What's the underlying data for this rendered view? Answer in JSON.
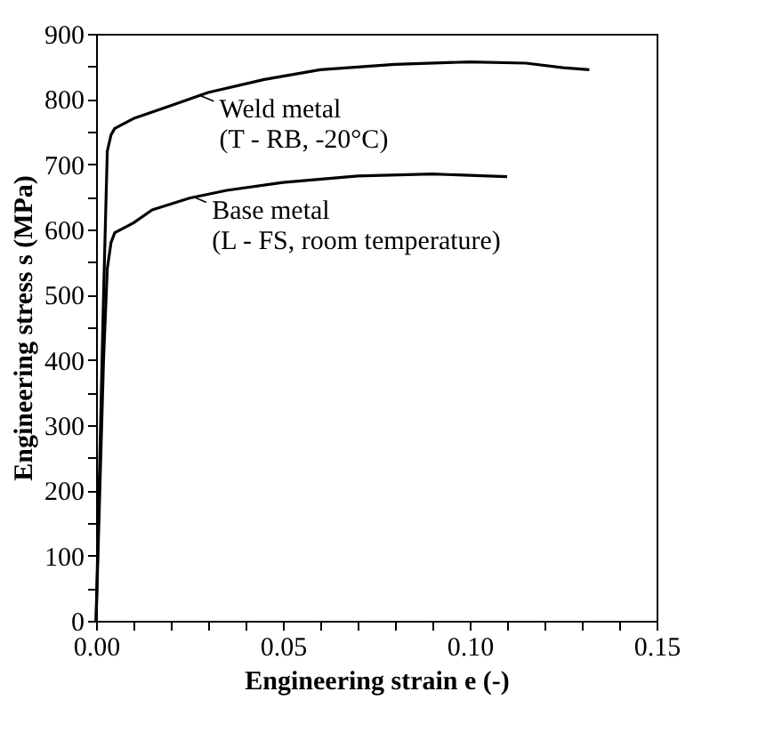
{
  "chart_data": {
    "type": "line",
    "xlabel": "Engineering strain e (-)",
    "ylabel": "Engineering stress s (MPa)",
    "xlim": [
      0,
      0.15
    ],
    "ylim": [
      0,
      900
    ],
    "xticks": [
      {
        "value": 0,
        "label": "0.00"
      },
      {
        "value": 0.01,
        "label": null
      },
      {
        "value": 0.02,
        "label": null
      },
      {
        "value": 0.03,
        "label": null
      },
      {
        "value": 0.04,
        "label": null
      },
      {
        "value": 0.05,
        "label": "0.05"
      },
      {
        "value": 0.06,
        "label": null
      },
      {
        "value": 0.07,
        "label": null
      },
      {
        "value": 0.08,
        "label": null
      },
      {
        "value": 0.09,
        "label": null
      },
      {
        "value": 0.1,
        "label": "0.10"
      },
      {
        "value": 0.11,
        "label": null
      },
      {
        "value": 0.12,
        "label": null
      },
      {
        "value": 0.13,
        "label": null
      },
      {
        "value": 0.14,
        "label": null
      },
      {
        "value": 0.15,
        "label": "0.15"
      }
    ],
    "yticks": [
      0,
      {
        "value": 50,
        "label": null
      },
      100,
      {
        "value": 150,
        "label": null
      },
      200,
      {
        "value": 250,
        "label": null
      },
      300,
      {
        "value": 350,
        "label": null
      },
      400,
      {
        "value": 450,
        "label": null
      },
      500,
      {
        "value": 550,
        "label": null
      },
      600,
      {
        "value": 650,
        "label": null
      },
      700,
      {
        "value": 750,
        "label": null
      },
      800,
      {
        "value": 850,
        "label": null
      },
      900
    ],
    "grid": false,
    "marker": "none",
    "line_style": "solid",
    "series": [
      {
        "color": "#000000",
        "x": [
          0,
          0.002,
          0.003,
          0.004,
          0.005,
          0.01,
          0.02,
          0.03,
          0.045,
          0.06,
          0.08,
          0.1,
          0.115,
          0.125,
          0.132
        ],
        "values": [
          0,
          500,
          720,
          745,
          755,
          770,
          790,
          810,
          830,
          845,
          853,
          857,
          855,
          848,
          845
        ]
      },
      {
        "color": "#000000",
        "x": [
          0,
          0.002,
          0.003,
          0.004,
          0.005,
          0.01,
          0.015,
          0.025,
          0.035,
          0.05,
          0.07,
          0.09,
          0.1,
          0.11
        ],
        "values": [
          0,
          400,
          540,
          580,
          595,
          610,
          630,
          648,
          660,
          672,
          682,
          685,
          683,
          681
        ]
      }
    ],
    "annotations": [
      {
        "text": "Weld metal\n(T - RB, -20°C)",
        "x": 0.028,
        "y": 805
      },
      {
        "text": "Base metal\n(L - FS, room temperature)",
        "x": 0.026,
        "y": 650
      }
    ]
  }
}
